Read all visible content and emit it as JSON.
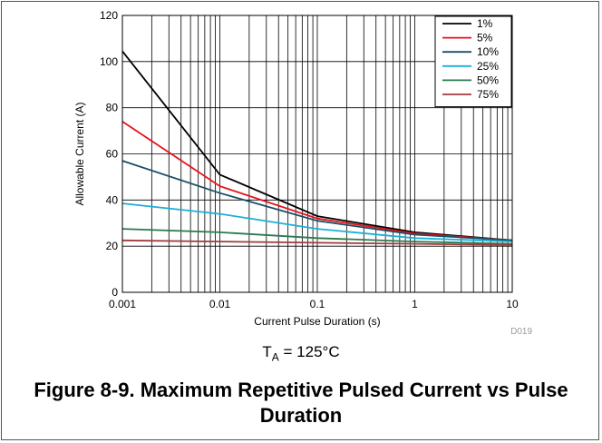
{
  "chart_data": {
    "type": "line",
    "xscale": "log",
    "xlim": [
      0.001,
      10
    ],
    "ylim": [
      0,
      120
    ],
    "xticks": [
      0.001,
      0.01,
      0.1,
      1,
      10
    ],
    "xtick_labels": [
      "0.001",
      "0.01",
      "0.1",
      "1",
      "10"
    ],
    "yticks": [
      0,
      20,
      40,
      60,
      80,
      100,
      120
    ],
    "ytick_labels": [
      "0",
      "20",
      "40",
      "60",
      "80",
      "100",
      "120"
    ],
    "xlabel": "Current Pulse Duration (s)",
    "ylabel": "Allowable Current (A)",
    "grid": true,
    "legend_position": "top-right",
    "series": [
      {
        "name": "1%",
        "color": "#000000",
        "x": [
          0.001,
          0.01,
          0.1,
          1,
          10
        ],
        "y": [
          104.5,
          51,
          33,
          26,
          22.5
        ]
      },
      {
        "name": "5%",
        "color": "#e8101a",
        "x": [
          0.001,
          0.01,
          0.1,
          1,
          10
        ],
        "y": [
          74,
          46,
          32,
          25.5,
          22.5
        ]
      },
      {
        "name": "10%",
        "color": "#1a4f66",
        "x": [
          0.001,
          0.01,
          0.1,
          1,
          10
        ],
        "y": [
          57,
          43,
          31,
          25,
          22.5
        ]
      },
      {
        "name": "25%",
        "color": "#1ab0d8",
        "x": [
          0.001,
          0.01,
          0.1,
          1,
          10
        ],
        "y": [
          38.5,
          34,
          27.5,
          23.5,
          22
        ]
      },
      {
        "name": "50%",
        "color": "#2a7a50",
        "x": [
          0.001,
          0.01,
          0.1,
          1,
          10
        ],
        "y": [
          27.5,
          26,
          23.5,
          22,
          21
        ]
      },
      {
        "name": "75%",
        "color": "#a03c3c",
        "x": [
          0.001,
          0.01,
          0.1,
          1,
          10
        ],
        "y": [
          22.5,
          22,
          21.5,
          21,
          20.5
        ]
      }
    ],
    "watermark": "D019"
  },
  "condition": {
    "prefix": "T",
    "subscript": "A",
    "suffix": " = 125°C"
  },
  "caption": "Figure 8-9. Maximum Repetitive Pulsed Current vs Pulse Duration"
}
